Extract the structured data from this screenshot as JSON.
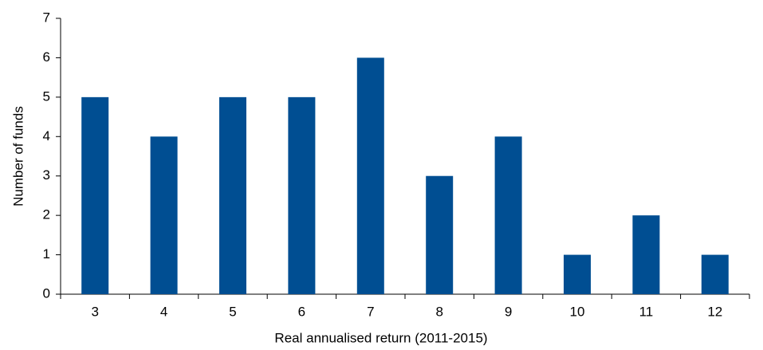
{
  "chart_data": {
    "type": "bar",
    "x_label": "Real annualised return (2011-2015)",
    "y_label": "Number of funds",
    "categories": [
      "3",
      "4",
      "5",
      "6",
      "7",
      "8",
      "9",
      "10",
      "11",
      "12"
    ],
    "values": [
      5,
      4,
      5,
      5,
      6,
      3,
      4,
      1,
      2,
      1
    ],
    "color": "#004e92",
    "ylim": [
      0,
      7
    ],
    "yticks": [
      0,
      1,
      2,
      3,
      4,
      5,
      6,
      7
    ],
    "grid": false
  }
}
